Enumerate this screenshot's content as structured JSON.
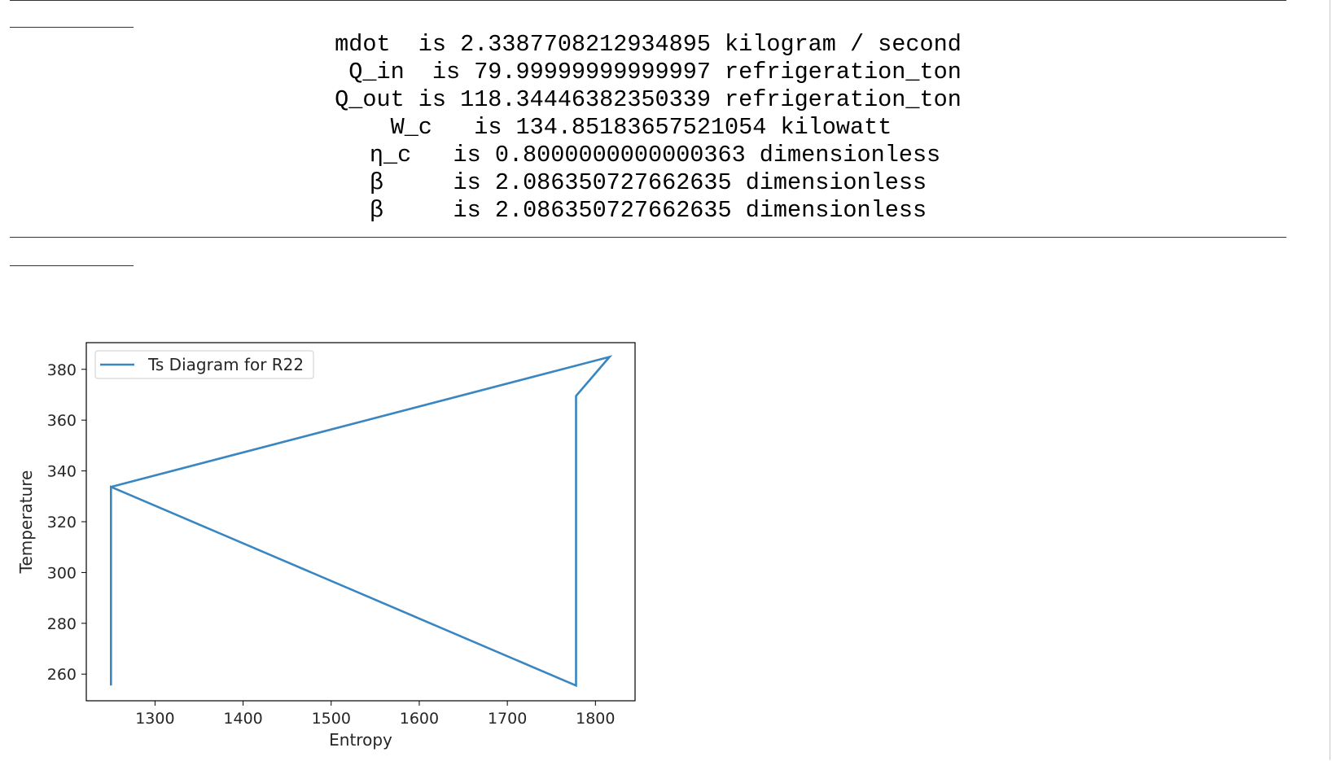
{
  "output": {
    "lines": [
      "mdot  is 2.3387708212934895 kilogram / second",
      " Q_in  is 79.99999999999997 refrigeration_ton",
      "Q_out is 118.34446382350339 refrigeration_ton",
      "W_c   is 134.85183657521054 kilowatt ",
      " η_c   is 0.8000000000000363 dimensionless",
      "β     is 2.086350727662635 dimensionless",
      "β     is 2.086350727662635 dimensionless"
    ]
  },
  "colors": {
    "line": "#3a86c0",
    "axis": "#000000",
    "text": "#262626",
    "rule": "#333333"
  },
  "chart_data": {
    "type": "line",
    "title": "",
    "xlabel": "Entropy",
    "ylabel": "Temperature",
    "legend_position": "upper-left",
    "grid": false,
    "xlim": [
      1222,
      1845
    ],
    "ylim": [
      249.5,
      390.5
    ],
    "xticks": [
      1300,
      1400,
      1500,
      1600,
      1700,
      1800
    ],
    "yticks": [
      260,
      280,
      300,
      320,
      340,
      360,
      380
    ],
    "series": [
      {
        "name": "Ts Diagram for R22",
        "x": [
          1250,
          1250,
          1778,
          1778,
          1816,
          1250
        ],
        "y": [
          255.5,
          333.7,
          255.5,
          369.5,
          384.9,
          333.7
        ]
      }
    ]
  }
}
